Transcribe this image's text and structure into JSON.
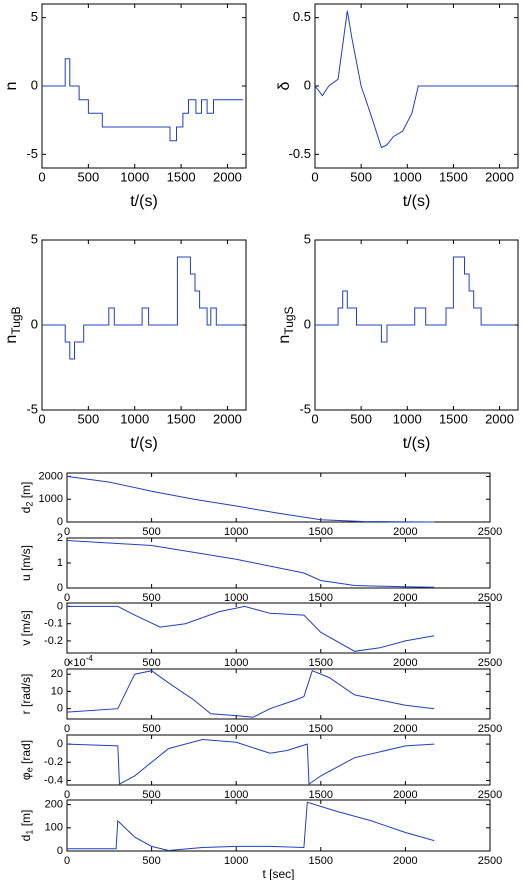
{
  "chart_data": [
    {
      "type": "line",
      "ylabel": [
        "n"
      ],
      "xlabel": "t/(s)",
      "color": "#2040c0",
      "x": [
        0,
        250,
        250,
        300,
        300,
        400,
        400,
        500,
        500,
        650,
        650,
        1380,
        1380,
        1450,
        1450,
        1520,
        1520,
        1580,
        1580,
        1660,
        1660,
        1720,
        1720,
        1780,
        1780,
        1850,
        1850,
        2170
      ],
      "values": [
        0,
        0,
        2,
        2,
        0,
        0,
        -1,
        -1,
        -2,
        -2,
        -3,
        -3,
        -4,
        -4,
        -3,
        -3,
        -2,
        -2,
        -1,
        -1,
        -2,
        -2,
        -1,
        -1,
        -2,
        -2,
        -1,
        -1
      ],
      "xlim": [
        0,
        2200
      ],
      "ylim": [
        -6,
        6
      ],
      "xticks": [
        0,
        500,
        1000,
        1500,
        2000
      ],
      "yticks": [
        -5,
        0,
        5
      ]
    },
    {
      "type": "line",
      "ylabel": [
        "δ"
      ],
      "xlabel": "t/(s)",
      "color": "#2040c0",
      "x": [
        0,
        80,
        150,
        250,
        350,
        400,
        500,
        600,
        720,
        780,
        850,
        950,
        1050,
        1120,
        2170
      ],
      "values": [
        0,
        -0.07,
        0,
        0.05,
        0.55,
        0.35,
        0,
        -0.2,
        -0.45,
        -0.43,
        -0.37,
        -0.33,
        -0.2,
        0,
        0
      ],
      "xlim": [
        0,
        2200
      ],
      "ylim": [
        -0.6,
        0.6
      ],
      "xticks": [
        0,
        500,
        1000,
        1500,
        2000
      ],
      "yticks": [
        -0.5,
        0,
        0.5
      ]
    },
    {
      "type": "line",
      "ylabel": [
        "n",
        "TugB"
      ],
      "xlabel": "t/(s)",
      "color": "#2040c0",
      "x": [
        0,
        250,
        250,
        300,
        300,
        350,
        350,
        450,
        450,
        720,
        720,
        780,
        780,
        1080,
        1080,
        1150,
        1150,
        1460,
        1460,
        1600,
        1600,
        1650,
        1650,
        1700,
        1700,
        1780,
        1780,
        1820,
        1820,
        1880,
        1880,
        2170
      ],
      "values": [
        0,
        0,
        -1,
        -1,
        -2,
        -2,
        -1,
        -1,
        0,
        0,
        1,
        1,
        0,
        0,
        1,
        1,
        0,
        0,
        4,
        4,
        3,
        3,
        2,
        2,
        1,
        1,
        0,
        0,
        1,
        1,
        0,
        0
      ],
      "xlim": [
        0,
        2200
      ],
      "ylim": [
        -5,
        5
      ],
      "xticks": [
        0,
        500,
        1000,
        1500,
        2000
      ],
      "yticks": [
        -5,
        0,
        5
      ]
    },
    {
      "type": "line",
      "ylabel": [
        "n",
        "TugS"
      ],
      "xlabel": "t/(s)",
      "color": "#2040c0",
      "x": [
        0,
        250,
        250,
        300,
        300,
        350,
        350,
        450,
        450,
        720,
        720,
        780,
        780,
        1080,
        1080,
        1200,
        1200,
        1420,
        1420,
        1500,
        1500,
        1620,
        1620,
        1670,
        1670,
        1720,
        1720,
        1800,
        1800,
        2170
      ],
      "values": [
        0,
        0,
        1,
        1,
        2,
        2,
        1,
        1,
        0,
        0,
        -1,
        -1,
        0,
        0,
        1,
        1,
        0,
        0,
        1,
        1,
        4,
        4,
        3,
        3,
        2,
        2,
        1,
        1,
        0,
        0
      ],
      "xlim": [
        0,
        2200
      ],
      "ylim": [
        -5,
        5
      ],
      "xticks": [
        0,
        500,
        1000,
        1500,
        2000
      ],
      "yticks": [
        -5,
        0,
        5
      ]
    },
    {
      "type": "line",
      "ylabel": [
        "d",
        "2",
        " [m]"
      ],
      "color": "#2040c0",
      "x": [
        0,
        250,
        500,
        750,
        1000,
        1250,
        1500,
        1750,
        2000,
        2170
      ],
      "values": [
        2000,
        1750,
        1350,
        1000,
        700,
        380,
        100,
        20,
        5,
        0
      ],
      "xlim": [
        0,
        2500
      ],
      "ylim": [
        0,
        2150
      ],
      "xticks": [
        0,
        500,
        1000,
        1500,
        2000,
        2500
      ],
      "yticks": [
        0,
        1000,
        2000
      ]
    },
    {
      "type": "line",
      "ylabel": [
        "u [m/s]"
      ],
      "color": "#2040c0",
      "x": [
        0,
        500,
        1000,
        1400,
        1500,
        1700,
        2000,
        2170
      ],
      "values": [
        1.9,
        1.7,
        1.15,
        0.6,
        0.3,
        0.1,
        0.05,
        0.03
      ],
      "xlim": [
        0,
        2500
      ],
      "ylim": [
        0,
        2
      ],
      "xticks": [
        0,
        500,
        1000,
        1500,
        2000,
        2500
      ],
      "yticks": [
        0,
        1,
        2
      ]
    },
    {
      "type": "line",
      "ylabel": [
        "v [m/s]"
      ],
      "color": "#2040c0",
      "x": [
        0,
        300,
        400,
        550,
        700,
        900,
        1050,
        1200,
        1400,
        1500,
        1700,
        1850,
        2000,
        2170
      ],
      "values": [
        0,
        0,
        -0.05,
        -0.12,
        -0.1,
        -0.03,
        0,
        -0.04,
        -0.05,
        -0.15,
        -0.26,
        -0.24,
        -0.2,
        -0.17
      ],
      "xlim": [
        0,
        2500
      ],
      "ylim": [
        -0.27,
        0.02
      ],
      "xticks": [
        0,
        500,
        1000,
        1500,
        2000,
        2500
      ],
      "yticks": [
        -0.2,
        -0.1,
        0
      ]
    },
    {
      "type": "line",
      "ylabel": [
        "r [rad/s]"
      ],
      "exponent": [
        "×10",
        "-4"
      ],
      "color": "#2040c0",
      "x": [
        0,
        300,
        400,
        500,
        600,
        750,
        850,
        1000,
        1100,
        1200,
        1350,
        1400,
        1450,
        1550,
        1700,
        2000,
        2170
      ],
      "values": [
        -2,
        0,
        20,
        22,
        15,
        5,
        -3,
        -4,
        -5,
        0,
        5,
        7,
        22,
        18,
        8,
        2,
        0
      ],
      "xlim": [
        0,
        2500
      ],
      "ylim": [
        -6,
        23
      ],
      "xticks": [
        0,
        500,
        1000,
        1500,
        2000,
        2500
      ],
      "yticks": [
        0,
        10,
        20
      ]
    },
    {
      "type": "line",
      "ylabel": [
        "φ",
        "e",
        " [rad]"
      ],
      "color": "#2040c0",
      "x": [
        0,
        300,
        310,
        400,
        600,
        800,
        1000,
        1200,
        1300,
        1420,
        1430,
        1500,
        1700,
        2000,
        2170
      ],
      "values": [
        0,
        -0.02,
        -0.44,
        -0.35,
        -0.05,
        0.05,
        0.02,
        -0.1,
        -0.07,
        0,
        -0.44,
        -0.35,
        -0.15,
        -0.02,
        0
      ],
      "xlim": [
        0,
        2500
      ],
      "ylim": [
        -0.45,
        0.1
      ],
      "xticks": [
        0,
        500,
        1000,
        1500,
        2000,
        2500
      ],
      "yticks": [
        -0.4,
        -0.2,
        0
      ]
    },
    {
      "type": "line",
      "ylabel": [
        "d",
        "1",
        " [m]"
      ],
      "xlabel": "t [sec]",
      "color": "#2040c0",
      "x": [
        0,
        290,
        300,
        400,
        500,
        600,
        800,
        1000,
        1200,
        1400,
        1420,
        1600,
        1800,
        2000,
        2170
      ],
      "values": [
        10,
        10,
        130,
        60,
        20,
        2,
        15,
        20,
        20,
        15,
        210,
        170,
        130,
        80,
        45
      ],
      "xlim": [
        0,
        2500
      ],
      "ylim": [
        0,
        220
      ],
      "xticks": [
        0,
        500,
        1000,
        1500,
        2000,
        2500
      ],
      "yticks": [
        0,
        100,
        200
      ]
    }
  ]
}
